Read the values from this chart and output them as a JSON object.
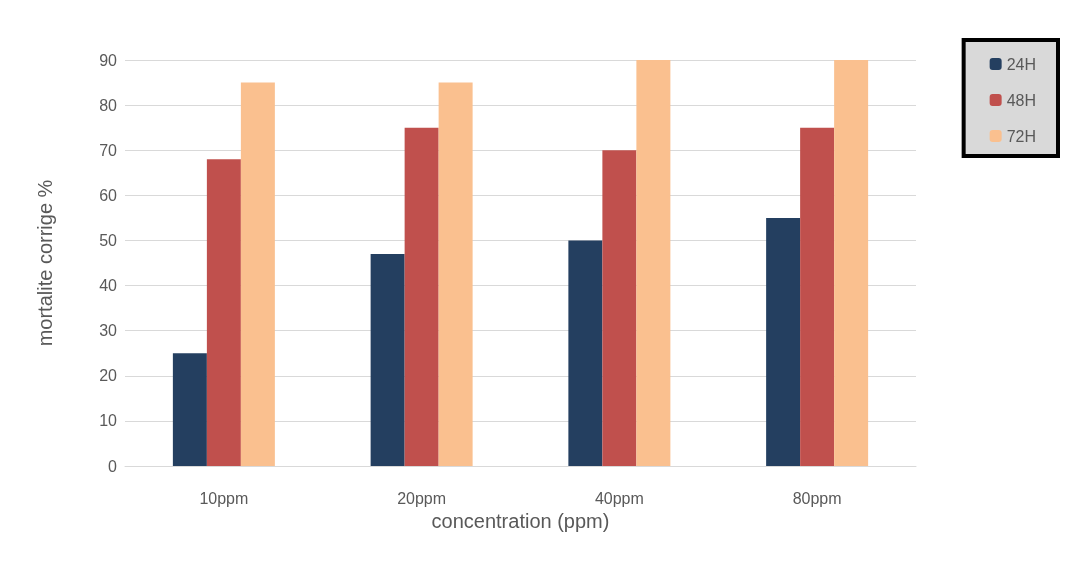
{
  "chart_data": {
    "type": "bar",
    "xlabel": "concentration (ppm)",
    "ylabel": "mortalite corrige %",
    "categories": [
      "10ppm",
      "20ppm",
      "40ppm",
      "80ppm"
    ],
    "series": [
      {
        "name": "24H",
        "color": "#243f60",
        "values": [
          25,
          47,
          50,
          55
        ]
      },
      {
        "name": "48H",
        "color": "#c0504d",
        "values": [
          68,
          75,
          70,
          75
        ]
      },
      {
        "name": "72H",
        "color": "#fac08f",
        "values": [
          85,
          85,
          90,
          90
        ]
      }
    ],
    "ylim": [
      0,
      90
    ],
    "yticks": [
      0,
      10,
      20,
      30,
      40,
      50,
      60,
      70,
      80,
      90
    ],
    "grid": "y",
    "legend": "top right"
  }
}
